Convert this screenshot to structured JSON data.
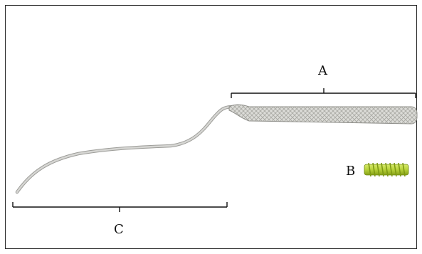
{
  "labels": {
    "a": "A",
    "b": "B",
    "c": "C"
  },
  "parts": [
    {
      "id": "A",
      "depiction": "braided-sleeve"
    },
    {
      "id": "B",
      "depiction": "threaded-screw"
    },
    {
      "id": "C",
      "depiction": "suture-tail"
    }
  ],
  "colors": {
    "background": "#ffffff",
    "frame": "#2a2a2a",
    "bracket": "#111111",
    "suture": "#c9c9c6",
    "suture_outline": "#9d9d99",
    "sleeve_fill": "#dcdcd8",
    "sleeve_weave": "#a9a9a4",
    "screw_body": "#b7d23a",
    "screw_thread": "#7e9a14"
  }
}
